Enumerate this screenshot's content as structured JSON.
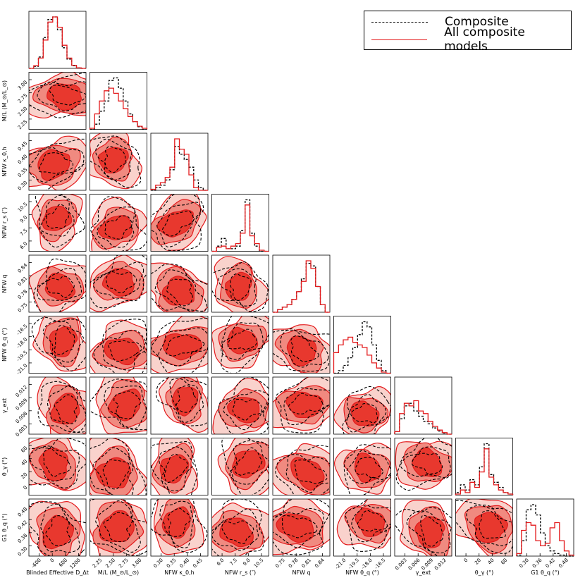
{
  "chart_data": {
    "type": "corner",
    "legend": {
      "entries": [
        {
          "label": "Composite",
          "style": "dashed",
          "color": "#000000"
        },
        {
          "label": "All composite models",
          "style": "solid",
          "color": "#e31a1c"
        }
      ],
      "placement": "top-right"
    },
    "colors": {
      "line": "#e31a1c",
      "fill_1sigma": "#e8382e",
      "fill_2sigma": "#f08a80",
      "fill_3sigma": "#f9d2cc",
      "composite": "#000000"
    },
    "parameters": [
      {
        "xlabel": "Blinded Effective D_Δt",
        "ylabel": "",
        "range": [
          -600,
          1200
        ],
        "ticks": [
          "-600",
          "0",
          "600",
          "1200"
        ]
      },
      {
        "xlabel": "M/L (M_⊙/L_⊙)",
        "ylabel": "M/L (M_⊙/L_⊙)",
        "range": [
          2.0,
          3.0
        ],
        "ticks": [
          "2.25",
          "2.50",
          "2.75",
          "3.00"
        ]
      },
      {
        "xlabel": "NFW κ_0,h",
        "ylabel": "NFW κ_0,h",
        "range": [
          0.27,
          0.47
        ],
        "ticks": [
          "0.30",
          "0.35",
          "0.40",
          "0.45"
        ]
      },
      {
        "xlabel": "NFW r_s (″)",
        "ylabel": "NFW r_s (″)",
        "range": [
          5.0,
          11.0
        ],
        "ticks": [
          "6.0",
          "7.5",
          "9.0",
          "10.5"
        ]
      },
      {
        "xlabel": "NFW q",
        "ylabel": "NFW q",
        "range": [
          0.74,
          0.86
        ],
        "ticks": [
          "0.75",
          "0.78",
          "0.81",
          "0.84"
        ]
      },
      {
        "xlabel": "NFW θ_q (°)",
        "ylabel": "NFW θ_q (°)",
        "range": [
          -22.5,
          -15.5
        ],
        "ticks": [
          "-21.0",
          "-19.5",
          "-18.0",
          "-16.5"
        ]
      },
      {
        "xlabel": "γ_ext",
        "ylabel": "γ_ext",
        "range": [
          0.0,
          0.015
        ],
        "ticks": [
          "0.003",
          "0.006",
          "0.009",
          "0.012"
        ]
      },
      {
        "xlabel": "θ_γ (°)",
        "ylabel": "θ_γ (°)",
        "range": [
          -20,
          80
        ],
        "ticks": [
          "0",
          "20",
          "40",
          "60"
        ]
      },
      {
        "xlabel": "G1 θ_q (°)",
        "ylabel": "G1 θ_q (°)",
        "range": [
          0.26,
          0.49
        ],
        "ticks": [
          "0.30",
          "0.36",
          "0.42",
          "0.48"
        ]
      }
    ],
    "marginals": {
      "all_composite_models": [
        [
          0.0,
          0.05,
          0.2,
          0.55,
          0.9,
          1.0,
          0.8,
          0.45,
          0.2,
          0.06,
          0.01,
          0.0
        ],
        [
          0.02,
          0.3,
          0.55,
          0.75,
          0.8,
          0.7,
          0.55,
          0.4,
          0.25,
          0.15,
          0.06,
          0.02
        ],
        [
          0.02,
          0.1,
          0.15,
          0.25,
          0.45,
          1.0,
          0.8,
          0.7,
          0.3,
          0.05,
          0.0,
          0.0
        ],
        [
          0.0,
          0.08,
          0.1,
          0.05,
          0.1,
          0.15,
          0.35,
          0.9,
          0.3,
          0.15,
          0.02,
          0.0
        ],
        [
          0.0,
          0.05,
          0.1,
          0.15,
          0.25,
          0.4,
          0.6,
          1.0,
          0.85,
          0.5,
          0.15,
          0.0
        ],
        [
          0.4,
          0.55,
          0.65,
          0.7,
          0.6,
          0.55,
          0.5,
          0.35,
          0.2,
          0.1,
          0.02,
          0.0
        ],
        [
          0.05,
          0.4,
          0.6,
          0.55,
          0.65,
          0.45,
          0.4,
          0.25,
          0.15,
          0.08,
          0.03,
          0.0
        ],
        [
          0.02,
          0.1,
          0.05,
          0.25,
          0.15,
          0.45,
          0.9,
          0.35,
          0.2,
          0.1,
          0.05,
          0.02
        ],
        [
          0.05,
          0.5,
          0.65,
          0.6,
          0.3,
          0.2,
          0.25,
          0.55,
          0.65,
          0.3,
          0.1,
          0.02
        ]
      ],
      "composite": [
        [
          0.0,
          0.04,
          0.22,
          0.6,
          0.95,
          1.0,
          0.75,
          0.4,
          0.18,
          0.05,
          0.01,
          0.0
        ],
        [
          0.0,
          0.1,
          0.35,
          0.55,
          0.95,
          1.0,
          0.8,
          0.55,
          0.3,
          0.15,
          0.05,
          0.0
        ],
        [
          0.0,
          0.05,
          0.1,
          0.2,
          0.4,
          0.85,
          0.7,
          0.6,
          0.45,
          0.2,
          0.05,
          0.0
        ],
        [
          0.0,
          0.1,
          0.25,
          0.05,
          0.05,
          0.1,
          0.4,
          1.0,
          0.35,
          0.1,
          0.0,
          0.0
        ],
        [
          0.0,
          0.05,
          0.1,
          0.15,
          0.25,
          0.4,
          0.65,
          0.95,
          0.9,
          0.5,
          0.15,
          0.0
        ],
        [
          0.0,
          0.05,
          0.15,
          0.3,
          0.5,
          0.75,
          1.0,
          0.9,
          0.55,
          0.25,
          0.05,
          0.0
        ],
        [
          0.05,
          0.3,
          0.55,
          0.6,
          0.45,
          0.35,
          0.25,
          0.2,
          0.12,
          0.06,
          0.02,
          0.0
        ],
        [
          0.05,
          0.2,
          0.1,
          0.3,
          0.2,
          0.55,
          1.0,
          0.4,
          0.25,
          0.15,
          0.05,
          0.02
        ],
        [
          0.02,
          0.3,
          0.9,
          1.0,
          0.8,
          0.45,
          0.2,
          0.1,
          0.05,
          0.02,
          0.0,
          0.0
        ]
      ]
    }
  }
}
